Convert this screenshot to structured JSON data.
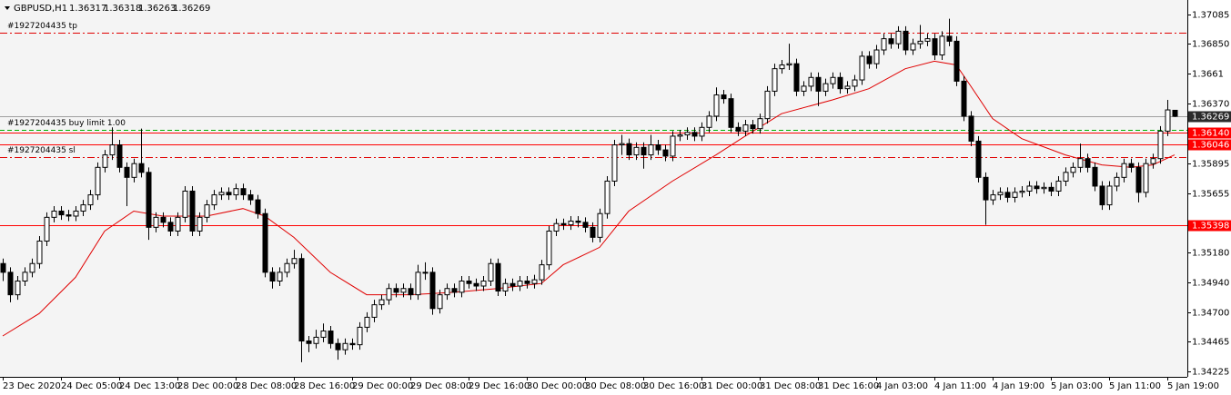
{
  "chart_data": {
    "type": "candlestick",
    "symbol": "GBPUSD,H1",
    "ylim": [
      1.34183,
      1.372
    ],
    "yticks": [
      1.37085,
      {
        "value": 1.3685,
        "label": "1.36850"
      },
      1.3661,
      {
        "value": 1.3637,
        "label": "1.36370"
      },
      1.35895,
      1.35655,
      {
        "value": 1.3518,
        "label": "1.35180"
      },
      {
        "value": 1.3494,
        "label": "1.34940"
      },
      {
        "value": 1.347,
        "label": "1.34700"
      },
      1.34465,
      1.34225
    ],
    "up_color": "#ffffff",
    "down_color": "#000000",
    "categories": [
      "23 Dec 2020",
      null,
      null,
      null,
      null,
      null,
      null,
      null,
      "24 Dec 05:00",
      null,
      null,
      null,
      null,
      null,
      null,
      null,
      "24 Dec 13:00",
      null,
      null,
      null,
      null,
      null,
      null,
      null,
      "28 Dec 00:00",
      null,
      null,
      null,
      null,
      null,
      null,
      null,
      "28 Dec 08:00",
      null,
      null,
      null,
      null,
      null,
      null,
      null,
      "28 Dec 16:00",
      null,
      null,
      null,
      null,
      null,
      null,
      null,
      "29 Dec 00:00",
      null,
      null,
      null,
      null,
      null,
      null,
      null,
      "29 Dec 08:00",
      null,
      null,
      null,
      null,
      null,
      null,
      null,
      "29 Dec 16:00",
      null,
      null,
      null,
      null,
      null,
      null,
      null,
      "30 Dec 00:00",
      null,
      null,
      null,
      null,
      null,
      null,
      null,
      "30 Dec 08:00",
      null,
      null,
      null,
      null,
      null,
      null,
      null,
      "30 Dec 16:00",
      null,
      null,
      null,
      null,
      null,
      null,
      null,
      "31 Dec 00:00",
      null,
      null,
      null,
      null,
      null,
      null,
      null,
      "31 Dec 08:00",
      null,
      null,
      null,
      null,
      null,
      null,
      null,
      "31 Dec 16:00",
      null,
      null,
      null,
      null,
      null,
      null,
      null,
      "4 Jan 03:00",
      null,
      null,
      null,
      null,
      null,
      null,
      null,
      "4 Jan 11:00",
      null,
      null,
      null,
      null,
      null,
      null,
      null,
      "4 Jan 19:00",
      null,
      null,
      null,
      null,
      null,
      null,
      null,
      "5 Jan 03:00",
      null,
      null,
      null,
      null,
      null,
      null,
      null,
      "5 Jan 11:00",
      null,
      null,
      null,
      null,
      null,
      null,
      null,
      "5 Jan 19:00",
      null
    ],
    "candles": [
      [
        1.3509,
        1.3513,
        1.3495,
        1.3502
      ],
      [
        1.3502,
        1.3506,
        1.3478,
        1.3484
      ],
      [
        1.3484,
        1.3499,
        1.348,
        1.3495
      ],
      [
        1.3495,
        1.3506,
        1.3491,
        1.3502
      ],
      [
        1.3502,
        1.3513,
        1.3498,
        1.3509
      ],
      [
        1.3509,
        1.3531,
        1.3505,
        1.3527
      ],
      [
        1.3527,
        1.355,
        1.3523,
        1.3546
      ],
      [
        1.3546,
        1.3555,
        1.3542,
        1.3551
      ],
      [
        1.3551,
        1.3555,
        1.3544,
        1.3548
      ],
      [
        1.3548,
        1.3552,
        1.3543,
        1.3547
      ],
      [
        1.3547,
        1.3555,
        1.3543,
        1.3551
      ],
      [
        1.3551,
        1.356,
        1.3547,
        1.3556
      ],
      [
        1.3556,
        1.3568,
        1.3552,
        1.3564
      ],
      [
        1.3564,
        1.359,
        1.356,
        1.3586
      ],
      [
        1.3586,
        1.36,
        1.3582,
        1.3596
      ],
      [
        1.3596,
        1.3618,
        1.3592,
        1.3604
      ],
      [
        1.3604,
        1.3608,
        1.3582,
        1.3586
      ],
      [
        1.3586,
        1.359,
        1.3555,
        1.3578
      ],
      [
        1.3578,
        1.3593,
        1.3574,
        1.3589
      ],
      [
        1.3589,
        1.3617,
        1.3578,
        1.3582
      ],
      [
        1.3582,
        1.3586,
        1.3528,
        1.3538
      ],
      [
        1.3538,
        1.355,
        1.3534,
        1.3546
      ],
      [
        1.3546,
        1.355,
        1.3538,
        1.3542
      ],
      [
        1.3542,
        1.3546,
        1.3531,
        1.3535
      ],
      [
        1.3535,
        1.355,
        1.3531,
        1.3546
      ],
      [
        1.3546,
        1.3571,
        1.3542,
        1.3567
      ],
      [
        1.3567,
        1.3571,
        1.3531,
        1.3535
      ],
      [
        1.3535,
        1.355,
        1.3531,
        1.3546
      ],
      [
        1.3546,
        1.356,
        1.3542,
        1.3556
      ],
      [
        1.3556,
        1.3568,
        1.3552,
        1.3564
      ],
      [
        1.3564,
        1.357,
        1.356,
        1.3566
      ],
      [
        1.3566,
        1.357,
        1.356,
        1.3564
      ],
      [
        1.3564,
        1.3573,
        1.356,
        1.3569
      ],
      [
        1.3569,
        1.3573,
        1.356,
        1.3564
      ],
      [
        1.3564,
        1.3568,
        1.3556,
        1.356
      ],
      [
        1.356,
        1.3564,
        1.3545,
        1.3549
      ],
      [
        1.3549,
        1.3553,
        1.3498,
        1.3502
      ],
      [
        1.3502,
        1.3506,
        1.3489,
        1.3495
      ],
      [
        1.3495,
        1.3506,
        1.3491,
        1.3502
      ],
      [
        1.3502,
        1.3513,
        1.3498,
        1.3509
      ],
      [
        1.3509,
        1.352,
        1.3505,
        1.3513
      ],
      [
        1.3513,
        1.3517,
        1.343,
        1.3447
      ],
      [
        1.3447,
        1.3451,
        1.3438,
        1.3445
      ],
      [
        1.3445,
        1.3456,
        1.3441,
        1.345
      ],
      [
        1.345,
        1.3461,
        1.3446,
        1.3455
      ],
      [
        1.3455,
        1.3459,
        1.3441,
        1.3445
      ],
      [
        1.3445,
        1.3449,
        1.3432,
        1.344
      ],
      [
        1.344,
        1.3449,
        1.3436,
        1.3445
      ],
      [
        1.3445,
        1.3449,
        1.344,
        1.3444
      ],
      [
        1.3444,
        1.3462,
        1.344,
        1.3458
      ],
      [
        1.3458,
        1.347,
        1.3454,
        1.3466
      ],
      [
        1.3466,
        1.348,
        1.3462,
        1.3476
      ],
      [
        1.3476,
        1.3484,
        1.3472,
        1.348
      ],
      [
        1.348,
        1.3493,
        1.3476,
        1.3489
      ],
      [
        1.3489,
        1.3493,
        1.3482,
        1.3486
      ],
      [
        1.3486,
        1.3493,
        1.3482,
        1.3489
      ],
      [
        1.3489,
        1.3493,
        1.348,
        1.3484
      ],
      [
        1.3484,
        1.3508,
        1.348,
        1.3502
      ],
      [
        1.3502,
        1.351,
        1.3496,
        1.3502
      ],
      [
        1.3502,
        1.3506,
        1.3468,
        1.3473
      ],
      [
        1.3473,
        1.3488,
        1.3469,
        1.3484
      ],
      [
        1.3484,
        1.3493,
        1.348,
        1.3489
      ],
      [
        1.3489,
        1.3493,
        1.3482,
        1.3486
      ],
      [
        1.3486,
        1.3499,
        1.3482,
        1.3495
      ],
      [
        1.3495,
        1.3499,
        1.3489,
        1.3493
      ],
      [
        1.3493,
        1.3497,
        1.3487,
        1.3491
      ],
      [
        1.3491,
        1.3499,
        1.3487,
        1.3495
      ],
      [
        1.3495,
        1.3513,
        1.3491,
        1.3509
      ],
      [
        1.3509,
        1.3513,
        1.3483,
        1.3487
      ],
      [
        1.3487,
        1.3497,
        1.3483,
        1.3493
      ],
      [
        1.3493,
        1.3497,
        1.3487,
        1.3491
      ],
      [
        1.3491,
        1.3499,
        1.3487,
        1.3495
      ],
      [
        1.3495,
        1.3499,
        1.3489,
        1.3493
      ],
      [
        1.3493,
        1.35,
        1.3489,
        1.3496
      ],
      [
        1.3496,
        1.3512,
        1.3492,
        1.3508
      ],
      [
        1.3508,
        1.3539,
        1.3504,
        1.3535
      ],
      [
        1.3535,
        1.3545,
        1.3531,
        1.3541
      ],
      [
        1.3541,
        1.3545,
        1.3536,
        1.354
      ],
      [
        1.354,
        1.3547,
        1.3536,
        1.3543
      ],
      [
        1.3543,
        1.3547,
        1.3538,
        1.3542
      ],
      [
        1.3542,
        1.3546,
        1.3534,
        1.3538
      ],
      [
        1.3538,
        1.3542,
        1.3526,
        1.353
      ],
      [
        1.353,
        1.3553,
        1.3526,
        1.3549
      ],
      [
        1.3549,
        1.3579,
        1.3545,
        1.3575
      ],
      [
        1.3575,
        1.3608,
        1.3571,
        1.3604
      ],
      [
        1.3604,
        1.3612,
        1.3596,
        1.3605
      ],
      [
        1.3605,
        1.3609,
        1.3592,
        1.3596
      ],
      [
        1.3596,
        1.3606,
        1.3592,
        1.3602
      ],
      [
        1.3602,
        1.3606,
        1.3585,
        1.3596
      ],
      [
        1.3596,
        1.3612,
        1.3592,
        1.3604
      ],
      [
        1.3604,
        1.3608,
        1.3596,
        1.36
      ],
      [
        1.36,
        1.3604,
        1.3591,
        1.3595
      ],
      [
        1.3595,
        1.3615,
        1.3591,
        1.3611
      ],
      [
        1.3611,
        1.3616,
        1.3607,
        1.3612
      ],
      [
        1.3612,
        1.3618,
        1.3608,
        1.3614
      ],
      [
        1.3614,
        1.3618,
        1.3607,
        1.3611
      ],
      [
        1.3611,
        1.3622,
        1.3607,
        1.3618
      ],
      [
        1.3618,
        1.3631,
        1.3614,
        1.3627
      ],
      [
        1.3627,
        1.365,
        1.3623,
        1.3644
      ],
      [
        1.3644,
        1.3648,
        1.3637,
        1.3641
      ],
      [
        1.3641,
        1.3645,
        1.3614,
        1.3618
      ],
      [
        1.3618,
        1.3622,
        1.3611,
        1.3615
      ],
      [
        1.3615,
        1.3624,
        1.3611,
        1.362
      ],
      [
        1.362,
        1.3624,
        1.3613,
        1.3617
      ],
      [
        1.3617,
        1.3629,
        1.3613,
        1.3625
      ],
      [
        1.3625,
        1.3651,
        1.3621,
        1.3647
      ],
      [
        1.3647,
        1.3669,
        1.3643,
        1.3665
      ],
      [
        1.3665,
        1.3672,
        1.3661,
        1.3668
      ],
      [
        1.3668,
        1.3685,
        1.3664,
        1.3669
      ],
      [
        1.3669,
        1.3673,
        1.3643,
        1.3647
      ],
      [
        1.3647,
        1.3655,
        1.3643,
        1.3651
      ],
      [
        1.3651,
        1.3662,
        1.3647,
        1.3658
      ],
      [
        1.3658,
        1.3662,
        1.3635,
        1.3647
      ],
      [
        1.3647,
        1.3657,
        1.3643,
        1.3653
      ],
      [
        1.3653,
        1.3662,
        1.3649,
        1.3658
      ],
      [
        1.3658,
        1.3662,
        1.3645,
        1.3649
      ],
      [
        1.3649,
        1.3655,
        1.3645,
        1.3651
      ],
      [
        1.3651,
        1.366,
        1.3647,
        1.3656
      ],
      [
        1.3656,
        1.3679,
        1.3652,
        1.3675
      ],
      [
        1.3675,
        1.3679,
        1.3665,
        1.3669
      ],
      [
        1.3669,
        1.3684,
        1.3665,
        1.368
      ],
      [
        1.368,
        1.3693,
        1.3676,
        1.3689
      ],
      [
        1.3689,
        1.3693,
        1.3681,
        1.3685
      ],
      [
        1.3685,
        1.3699,
        1.3681,
        1.3695
      ],
      [
        1.3695,
        1.3699,
        1.3676,
        1.368
      ],
      [
        1.368,
        1.3689,
        1.3676,
        1.3685
      ],
      [
        1.3685,
        1.37,
        1.3681,
        1.3687
      ],
      [
        1.3687,
        1.3693,
        1.3683,
        1.3689
      ],
      [
        1.3689,
        1.3693,
        1.3672,
        1.3676
      ],
      [
        1.3676,
        1.3695,
        1.3672,
        1.3691
      ],
      [
        1.3691,
        1.3705,
        1.3683,
        1.3687
      ],
      [
        1.3687,
        1.3691,
        1.3651,
        1.3655
      ],
      [
        1.3655,
        1.3659,
        1.3623,
        1.3627
      ],
      [
        1.3627,
        1.3631,
        1.3603,
        1.3607
      ],
      [
        1.3607,
        1.3611,
        1.3574,
        1.3578
      ],
      [
        1.3578,
        1.3582,
        1.354,
        1.356
      ],
      [
        1.356,
        1.3568,
        1.3556,
        1.3564
      ],
      [
        1.3564,
        1.357,
        1.356,
        1.3566
      ],
      [
        1.3566,
        1.357,
        1.3558,
        1.3562
      ],
      [
        1.3562,
        1.357,
        1.3558,
        1.3566
      ],
      [
        1.3566,
        1.3571,
        1.3562,
        1.3567
      ],
      [
        1.3567,
        1.3575,
        1.3563,
        1.3571
      ],
      [
        1.3571,
        1.3575,
        1.3565,
        1.3569
      ],
      [
        1.3569,
        1.3574,
        1.3565,
        1.357
      ],
      [
        1.357,
        1.3574,
        1.3563,
        1.3567
      ],
      [
        1.3567,
        1.3579,
        1.3563,
        1.3575
      ],
      [
        1.3575,
        1.3586,
        1.3571,
        1.3582
      ],
      [
        1.3582,
        1.359,
        1.3578,
        1.3586
      ],
      [
        1.3586,
        1.3605,
        1.3582,
        1.3593
      ],
      [
        1.3593,
        1.3597,
        1.3582,
        1.3586
      ],
      [
        1.3586,
        1.359,
        1.3567,
        1.3571
      ],
      [
        1.3571,
        1.3575,
        1.3552,
        1.3556
      ],
      [
        1.3556,
        1.3575,
        1.3552,
        1.3571
      ],
      [
        1.3571,
        1.3582,
        1.3567,
        1.3578
      ],
      [
        1.3578,
        1.3593,
        1.3574,
        1.3589
      ],
      [
        1.3589,
        1.3593,
        1.3582,
        1.3586
      ],
      [
        1.3586,
        1.359,
        1.3558,
        1.3566
      ],
      [
        1.3566,
        1.3593,
        1.3562,
        1.3589
      ],
      [
        1.3589,
        1.3597,
        1.3585,
        1.3593
      ],
      [
        1.3593,
        1.3619,
        1.3589,
        1.3615
      ],
      [
        1.3615,
        1.364,
        1.3611,
        1.3632
      ],
      [
        1.36317,
        1.36318,
        1.36263,
        1.36269
      ]
    ],
    "ma": {
      "color": "#e00000",
      "x": [
        0,
        5,
        10,
        14,
        18,
        22,
        28,
        33,
        36,
        40,
        45,
        50,
        56,
        62,
        68,
        74,
        77,
        82,
        86,
        92,
        98,
        102,
        107,
        114,
        119,
        124,
        128,
        131,
        133,
        136,
        140,
        146,
        151,
        155,
        158,
        161
      ],
      "values": [
        1.3451,
        1.3469,
        1.3498,
        1.3535,
        1.3551,
        1.3547,
        1.3547,
        1.3553,
        1.3547,
        1.353,
        1.3502,
        1.3484,
        1.3484,
        1.3486,
        1.3489,
        1.3493,
        1.3508,
        1.3522,
        1.3551,
        1.3575,
        1.3596,
        1.3611,
        1.3629,
        1.364,
        1.3649,
        1.3665,
        1.3671,
        1.3668,
        1.3651,
        1.3625,
        1.3609,
        1.3596,
        1.3588,
        1.3586,
        1.3588,
        1.3596
      ]
    },
    "order_lines": [
      {
        "name": "#1927204435 tp",
        "price": 1.3694,
        "color": "#e00000",
        "style": "dashdot"
      },
      {
        "name": "#1927204435 buy limit 1.00",
        "price": 1.3616,
        "color": "#00b000",
        "style": "dashed"
      },
      {
        "name": "#1927204435 sl",
        "price": 1.35943,
        "color": "#e00000",
        "style": "dashdot"
      }
    ],
    "price_lines": [
      {
        "value": 1.3614,
        "label": "1.36140"
      },
      1.36046,
      1.35398
    ],
    "price_line_color": "#ff0000",
    "current_price_color": "#a0a0a0"
  }
}
